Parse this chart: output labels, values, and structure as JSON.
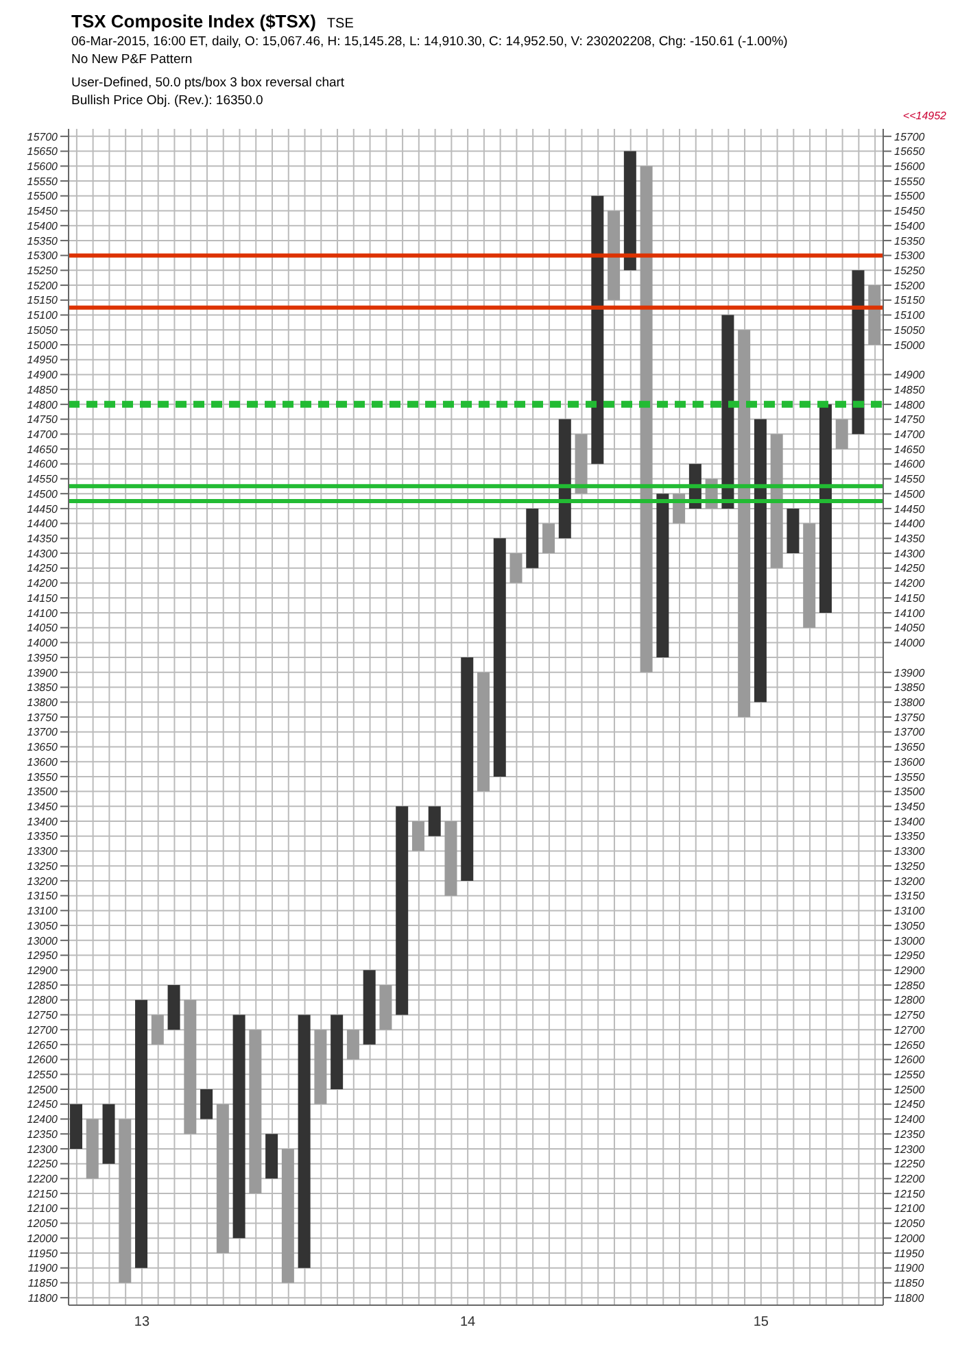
{
  "chart_data": {
    "type": "bar",
    "title": "TSX Composite Index ($TSX)",
    "subtitle": "TSE",
    "annotations": [
      "06-Mar-2015, 16:00 ET, daily, O: 15,067.46, H: 15,145.28, L: 14,910.30, C: 14,952.50, V: 230202208, Chg: -150.61 (-1.00%)",
      "No New P&F Pattern",
      "User-Defined, 50.0 pts/box 3 box reversal chart",
      "Bullish Price Obj. (Rev.): 16350.0",
      "<<14952"
    ],
    "categories": [
      null,
      null,
      null,
      null,
      "13",
      null,
      null,
      null,
      null,
      null,
      null,
      null,
      null,
      null,
      null,
      null,
      null,
      null,
      null,
      null,
      null,
      null,
      null,
      null,
      "14",
      null,
      null,
      null,
      null,
      null,
      null,
      null,
      null,
      null,
      null,
      null,
      null,
      null,
      null,
      null,
      null,
      null,
      "15",
      null,
      null,
      null,
      null,
      null,
      null,
      null
    ],
    "base": [
      12300,
      12200,
      12250,
      11850,
      11900,
      12650,
      12700,
      12350,
      12400,
      11950,
      12000,
      12150,
      12200,
      11850,
      11900,
      12450,
      12500,
      12600,
      12650,
      12700,
      12750,
      13300,
      13350,
      13150,
      13200,
      13500,
      13550,
      14200,
      14250,
      14300,
      14350,
      14500,
      14600,
      15150,
      15250,
      13900,
      13950,
      14400,
      14450,
      14450,
      14450,
      13750,
      13800,
      14250,
      14300,
      14050,
      14100,
      14650,
      14700,
      15000
    ],
    "values": [
      150,
      200,
      200,
      550,
      900,
      100,
      150,
      450,
      100,
      500,
      750,
      550,
      150,
      450,
      850,
      250,
      250,
      100,
      250,
      150,
      700,
      100,
      100,
      250,
      750,
      400,
      800,
      100,
      200,
      100,
      400,
      200,
      900,
      300,
      400,
      1700,
      550,
      100,
      150,
      100,
      650,
      1300,
      950,
      450,
      150,
      350,
      700,
      100,
      550,
      200
    ],
    "colors": [
      "#333333",
      "#9a9a9a",
      "#333333",
      "#9a9a9a",
      "#333333",
      "#9a9a9a",
      "#333333",
      "#9a9a9a",
      "#333333",
      "#9a9a9a",
      "#333333",
      "#9a9a9a",
      "#333333",
      "#9a9a9a",
      "#333333",
      "#9a9a9a",
      "#333333",
      "#9a9a9a",
      "#333333",
      "#9a9a9a",
      "#333333",
      "#9a9a9a",
      "#333333",
      "#9a9a9a",
      "#333333",
      "#9a9a9a",
      "#333333",
      "#9a9a9a",
      "#333333",
      "#9a9a9a",
      "#333333",
      "#9a9a9a",
      "#333333",
      "#9a9a9a",
      "#333333",
      "#9a9a9a",
      "#333333",
      "#9a9a9a",
      "#333333",
      "#9a9a9a",
      "#333333",
      "#9a9a9a",
      "#333333",
      "#9a9a9a",
      "#333333",
      "#9a9a9a",
      "#333333",
      "#9a9a9a",
      "#333333",
      "#9a9a9a"
    ],
    "ylim": [
      11775,
      15725
    ],
    "yticks": [
      11800,
      11850,
      11900,
      11950,
      12000,
      12050,
      12100,
      12150,
      12200,
      12250,
      12300,
      12350,
      12400,
      12450,
      12500,
      12550,
      12600,
      12650,
      12700,
      12750,
      12800,
      12850,
      12900,
      12950,
      13000,
      13050,
      13100,
      13150,
      13200,
      13250,
      13300,
      13350,
      13400,
      13450,
      13500,
      13550,
      13600,
      13650,
      13700,
      13750,
      13800,
      13850,
      13900,
      13950,
      14000,
      14050,
      14100,
      14150,
      14200,
      14250,
      14300,
      14350,
      14400,
      14450,
      14500,
      14550,
      14600,
      14650,
      14700,
      14750,
      14800,
      14850,
      14900,
      14950,
      15000,
      15050,
      15100,
      15150,
      15200,
      15250,
      15300,
      15350,
      15400,
      15450,
      15500,
      15550,
      15600,
      15650,
      15700
    ],
    "y2lim": [
      11775,
      15725
    ],
    "y2ticks": [
      11800,
      11850,
      11900,
      11950,
      12000,
      12050,
      12100,
      12150,
      12200,
      12250,
      12300,
      12350,
      12400,
      12450,
      12500,
      12550,
      12600,
      12650,
      12700,
      12750,
      12800,
      12850,
      12900,
      12950,
      13000,
      13050,
      13100,
      13150,
      13200,
      13250,
      13300,
      13350,
      13400,
      13450,
      13500,
      13550,
      13600,
      13650,
      13700,
      13750,
      13800,
      13850,
      13900,
      14000,
      14050,
      14100,
      14150,
      14200,
      14250,
      14300,
      14350,
      14400,
      14450,
      14500,
      14550,
      14600,
      14650,
      14700,
      14750,
      14800,
      14850,
      14900,
      15000,
      15050,
      15100,
      15150,
      15200,
      15250,
      15300,
      15350,
      15400,
      15450,
      15500,
      15550,
      15600,
      15650,
      15700
    ],
    "ref_lines": [
      {
        "axis": "y",
        "value": 14800,
        "color": "#22bb33",
        "line_style": "dashed"
      },
      {
        "axis": "y",
        "value": 14525,
        "color": "#22bb33",
        "line_style": "solid"
      },
      {
        "axis": "y",
        "value": 14475,
        "color": "#22bb33",
        "line_style": "solid"
      },
      {
        "axis": "y",
        "value": 15300,
        "color": "#dd3300",
        "line_style": "solid"
      },
      {
        "axis": "y",
        "value": 15125,
        "color": "#dd3300",
        "line_style": "solid"
      }
    ],
    "grid": true
  }
}
